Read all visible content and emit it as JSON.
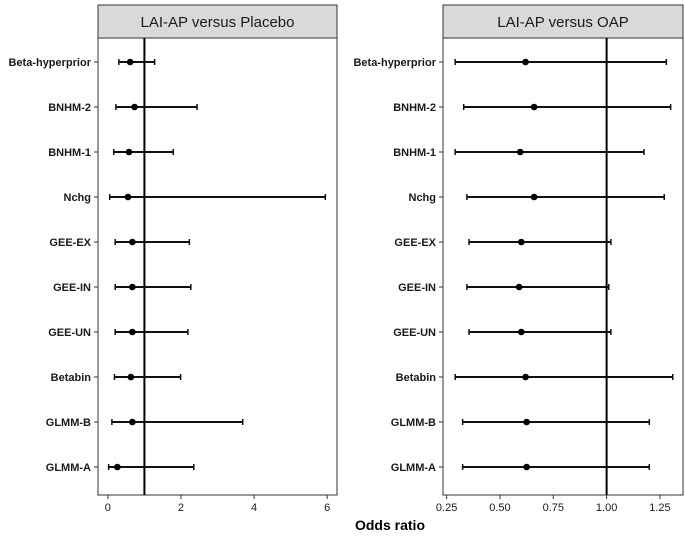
{
  "chart_data": {
    "type": "forest",
    "xlabel": "Odds ratio",
    "categories": [
      "Beta-hyperprior",
      "BNHM-2",
      "BNHM-1",
      "Nchg",
      "GEE-EX",
      "GEE-IN",
      "GEE-UN",
      "Betabin",
      "GLMM-B",
      "GLMM-A"
    ],
    "panels": [
      {
        "title": "LAI-AP versus Placebo",
        "xlim": [
          -0.27,
          6.27
        ],
        "ticks": [
          0,
          2,
          4,
          6
        ],
        "tick_labels": [
          "0",
          "2",
          "4",
          "6"
        ],
        "reference": 1,
        "estimate": [
          0.61,
          0.73,
          0.58,
          0.55,
          0.67,
          0.67,
          0.67,
          0.63,
          0.67,
          0.26
        ],
        "lower": [
          0.3,
          0.22,
          0.16,
          0.05,
          0.2,
          0.2,
          0.2,
          0.18,
          0.11,
          0.02
        ],
        "upper": [
          1.28,
          2.44,
          1.79,
          5.95,
          2.23,
          2.27,
          2.19,
          1.99,
          3.69,
          2.35
        ]
      },
      {
        "title": "LAI-AP versus OAP",
        "xlim": [
          0.233,
          1.358
        ],
        "ticks": [
          0.25,
          0.5,
          0.75,
          1.0,
          1.25
        ],
        "tick_labels": [
          "0.25",
          "0.50",
          "0.75",
          "1.00",
          "1.25"
        ],
        "reference": 1,
        "estimate": [
          0.62,
          0.66,
          0.595,
          0.66,
          0.6,
          0.59,
          0.6,
          0.62,
          0.625,
          0.625
        ],
        "lower": [
          0.29,
          0.33,
          0.29,
          0.345,
          0.355,
          0.345,
          0.355,
          0.29,
          0.325,
          0.325
        ],
        "upper": [
          1.28,
          1.3,
          1.175,
          1.27,
          1.02,
          1.01,
          1.02,
          1.31,
          1.2,
          1.2
        ]
      }
    ]
  }
}
